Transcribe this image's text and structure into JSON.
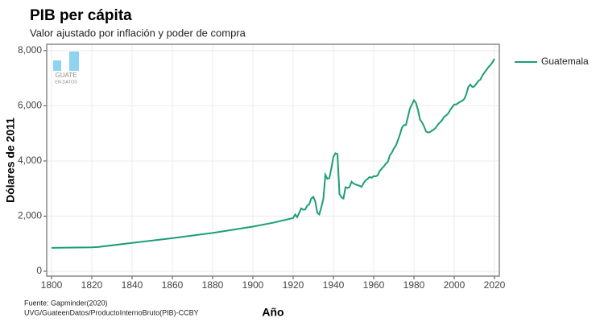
{
  "chart_data": {
    "type": "line",
    "title": "PIB per cápita",
    "subtitle": "Valor ajustado por inflación y poder de compra",
    "x_label": "Año",
    "y_label": "Dólares de 2011",
    "source": [
      "Fuente: Gapminder(2020)",
      "UVG/GuateenDatos/ProductoInternoBruto(PIB)-CCBY"
    ],
    "logo": [
      "GUATE",
      "EN DATOS"
    ],
    "legend_position": "right",
    "grid": true,
    "xlim": [
      1797.6,
      2022.4
    ],
    "ylim": [
      -175,
      8230
    ],
    "xticks": [
      1800,
      1820,
      1840,
      1860,
      1880,
      1900,
      1920,
      1940,
      1960,
      1980,
      2000,
      2020
    ],
    "yticks": [
      0,
      {
        "value": 2000,
        "label": "2,000"
      },
      {
        "value": 4000,
        "label": "4,000"
      },
      {
        "value": 6000,
        "label": "6,000"
      },
      {
        "value": 8000,
        "label": "8,000"
      }
    ],
    "x": [
      1800,
      1820,
      1823,
      1840,
      1860,
      1880,
      1900,
      1910,
      1920,
      1921,
      1922,
      1923,
      1924,
      1925,
      1926,
      1927,
      1928,
      1929,
      1930,
      1931,
      1932,
      1933,
      1934,
      1935,
      1936,
      1937,
      1938,
      1939,
      1940,
      1941,
      1942,
      1943,
      1944,
      1945,
      1946,
      1947,
      1948,
      1949,
      1950,
      1951,
      1952,
      1953,
      1954,
      1955,
      1956,
      1957,
      1958,
      1959,
      1960,
      1961,
      1962,
      1963,
      1964,
      1965,
      1966,
      1967,
      1968,
      1969,
      1970,
      1971,
      1972,
      1973,
      1974,
      1975,
      1976,
      1977,
      1978,
      1979,
      1980,
      1981,
      1982,
      1983,
      1984,
      1985,
      1986,
      1987,
      1988,
      1989,
      1990,
      1991,
      1992,
      1993,
      1994,
      1995,
      1996,
      1997,
      1998,
      1999,
      2000,
      2001,
      2002,
      2003,
      2004,
      2005,
      2006,
      2007,
      2008,
      2009,
      2010,
      2011,
      2012,
      2013,
      2014,
      2015,
      2016,
      2017,
      2018,
      2019,
      2020
    ],
    "series": [
      {
        "name": "Guatemala",
        "color": "#1b9e77",
        "values": [
          850,
          870,
          880,
          1030,
          1200,
          1390,
          1620,
          1760,
          1930,
          2060,
          1960,
          2120,
          2280,
          2230,
          2240,
          2380,
          2430,
          2640,
          2700,
          2530,
          2120,
          2060,
          2330,
          2620,
          3500,
          3350,
          3380,
          3750,
          4150,
          4280,
          4250,
          2800,
          2680,
          2640,
          3050,
          3020,
          3050,
          3250,
          3180,
          3150,
          3120,
          3100,
          3060,
          3200,
          3300,
          3350,
          3420,
          3390,
          3450,
          3440,
          3480,
          3640,
          3720,
          3800,
          3900,
          3960,
          4200,
          4300,
          4450,
          4550,
          4750,
          4950,
          5200,
          5300,
          5300,
          5600,
          5900,
          6050,
          6200,
          6100,
          5850,
          5500,
          5400,
          5250,
          5070,
          5030,
          5050,
          5100,
          5150,
          5220,
          5330,
          5400,
          5480,
          5600,
          5650,
          5720,
          5850,
          5950,
          6050,
          6050,
          6100,
          6150,
          6180,
          6250,
          6420,
          6680,
          6770,
          6680,
          6700,
          6800,
          6900,
          6950,
          7100,
          7200,
          7300,
          7400,
          7480,
          7580,
          7700
        ]
      }
    ]
  }
}
